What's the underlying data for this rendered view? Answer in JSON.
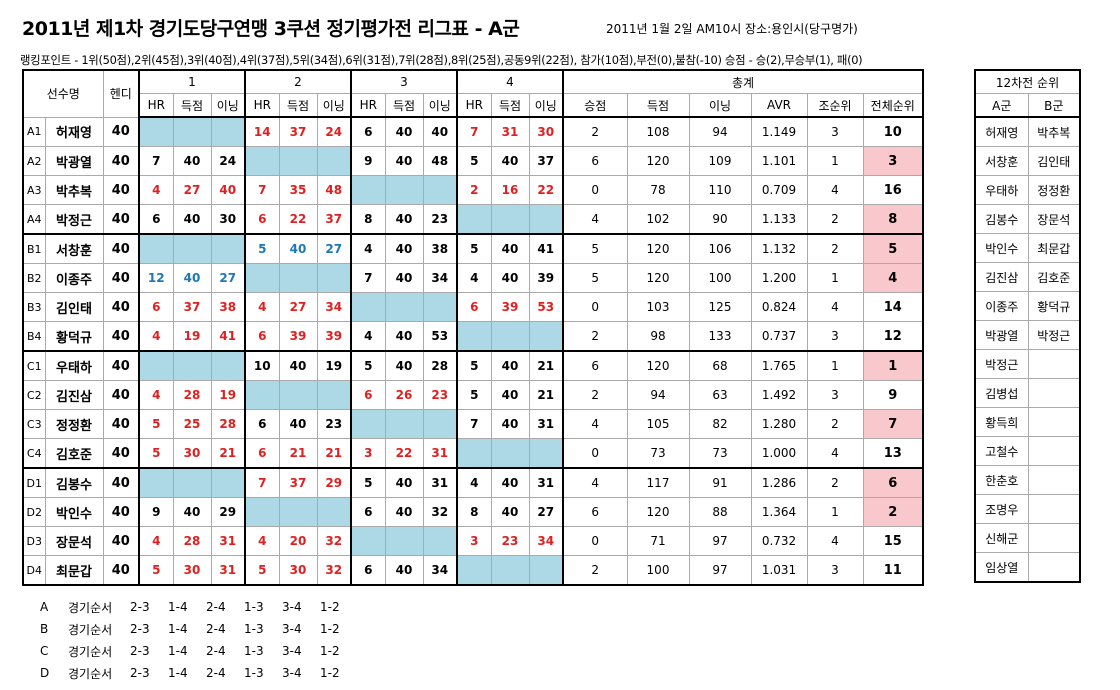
{
  "header": {
    "title": "2011년 제1차 경기도당구연맹 3쿠션 정기평가전 리그표 - A군",
    "info": "2011년 1월 2일 AM10시 장소:용인시(당구명가)",
    "points": "랭킹포인트 - 1위(50점),2위(45점),3위(40점),4위(37점),5위(34점),6위(31점),7위(28점),8위(25점),공동9위(22점), 참가(10점),부전(0),불참(-10) 승점 - 승(2),무승부(1), 패(0)"
  },
  "table": {
    "headers": {
      "player": "선수명",
      "handicap": "헨디",
      "games": [
        "1",
        "2",
        "3",
        "4"
      ],
      "total": "총계",
      "sub": [
        "HR",
        "득점",
        "이닝"
      ],
      "total_sub": [
        "승점",
        "득점",
        "이닝",
        "AVR",
        "조순위",
        "전체순위"
      ]
    },
    "rows": [
      {
        "id": "A1",
        "name": "허재영",
        "hd": "40",
        "g": [
          null,
          [
            "14",
            "37",
            "24"
          ],
          [
            "6",
            "40",
            "40"
          ],
          [
            "7",
            "31",
            "30"
          ]
        ],
        "c": [
          null,
          "red",
          "black",
          "red"
        ],
        "t": [
          "2",
          "108",
          "94",
          "1.149",
          "3",
          "10"
        ],
        "pink": false
      },
      {
        "id": "A2",
        "name": "박광열",
        "hd": "40",
        "g": [
          [
            "7",
            "40",
            "24"
          ],
          null,
          [
            "9",
            "40",
            "48"
          ],
          [
            "5",
            "40",
            "37"
          ]
        ],
        "c": [
          "black",
          null,
          "black",
          "black"
        ],
        "t": [
          "6",
          "120",
          "109",
          "1.101",
          "1",
          "3"
        ],
        "pink": true
      },
      {
        "id": "A3",
        "name": "박추복",
        "hd": "40",
        "g": [
          [
            "4",
            "27",
            "40"
          ],
          [
            "7",
            "35",
            "48"
          ],
          null,
          [
            "2",
            "16",
            "22"
          ]
        ],
        "c": [
          "red",
          "red",
          null,
          "red"
        ],
        "t": [
          "0",
          "78",
          "110",
          "0.709",
          "4",
          "16"
        ],
        "pink": false
      },
      {
        "id": "A4",
        "name": "박정근",
        "hd": "40",
        "g": [
          [
            "6",
            "40",
            "30"
          ],
          [
            "6",
            "22",
            "37"
          ],
          [
            "8",
            "40",
            "23"
          ],
          null
        ],
        "c": [
          "black",
          "red",
          "black",
          null
        ],
        "t": [
          "4",
          "102",
          "90",
          "1.133",
          "2",
          "8"
        ],
        "pink": true
      },
      {
        "id": "B1",
        "name": "서창훈",
        "hd": "40",
        "g": [
          null,
          [
            "5",
            "40",
            "27"
          ],
          [
            "4",
            "40",
            "38"
          ],
          [
            "5",
            "40",
            "41"
          ]
        ],
        "c": [
          null,
          "blue",
          "black",
          "black"
        ],
        "t": [
          "5",
          "120",
          "106",
          "1.132",
          "2",
          "5"
        ],
        "pink": true
      },
      {
        "id": "B2",
        "name": "이종주",
        "hd": "40",
        "g": [
          [
            "12",
            "40",
            "27"
          ],
          null,
          [
            "7",
            "40",
            "34"
          ],
          [
            "4",
            "40",
            "39"
          ]
        ],
        "c": [
          "blue",
          null,
          "black",
          "black"
        ],
        "t": [
          "5",
          "120",
          "100",
          "1.200",
          "1",
          "4"
        ],
        "pink": true
      },
      {
        "id": "B3",
        "name": "김인태",
        "hd": "40",
        "g": [
          [
            "6",
            "37",
            "38"
          ],
          [
            "4",
            "27",
            "34"
          ],
          null,
          [
            "6",
            "39",
            "53"
          ]
        ],
        "c": [
          "red",
          "red",
          null,
          "red"
        ],
        "t": [
          "0",
          "103",
          "125",
          "0.824",
          "4",
          "14"
        ],
        "pink": false
      },
      {
        "id": "B4",
        "name": "황덕규",
        "hd": "40",
        "g": [
          [
            "4",
            "19",
            "41"
          ],
          [
            "6",
            "39",
            "39"
          ],
          [
            "4",
            "40",
            "53"
          ],
          null
        ],
        "c": [
          "red",
          "red",
          "black",
          null
        ],
        "t": [
          "2",
          "98",
          "133",
          "0.737",
          "3",
          "12"
        ],
        "pink": false
      },
      {
        "id": "C1",
        "name": "우태하",
        "hd": "40",
        "g": [
          null,
          [
            "10",
            "40",
            "19"
          ],
          [
            "5",
            "40",
            "28"
          ],
          [
            "5",
            "40",
            "21"
          ]
        ],
        "c": [
          null,
          "black",
          "black",
          "black"
        ],
        "t": [
          "6",
          "120",
          "68",
          "1.765",
          "1",
          "1"
        ],
        "pink": true
      },
      {
        "id": "C2",
        "name": "김진삼",
        "hd": "40",
        "g": [
          [
            "4",
            "28",
            "19"
          ],
          null,
          [
            "6",
            "26",
            "23"
          ],
          [
            "5",
            "40",
            "21"
          ]
        ],
        "c": [
          "red",
          null,
          "red",
          "black"
        ],
        "t": [
          "2",
          "94",
          "63",
          "1.492",
          "3",
          "9"
        ],
        "pink": false
      },
      {
        "id": "C3",
        "name": "정정환",
        "hd": "40",
        "g": [
          [
            "5",
            "25",
            "28"
          ],
          [
            "6",
            "40",
            "23"
          ],
          null,
          [
            "7",
            "40",
            "31"
          ]
        ],
        "c": [
          "red",
          "black",
          null,
          "black"
        ],
        "t": [
          "4",
          "105",
          "82",
          "1.280",
          "2",
          "7"
        ],
        "pink": true
      },
      {
        "id": "C4",
        "name": "김호준",
        "hd": "40",
        "g": [
          [
            "5",
            "30",
            "21"
          ],
          [
            "6",
            "21",
            "21"
          ],
          [
            "3",
            "22",
            "31"
          ],
          null
        ],
        "c": [
          "red",
          "red",
          "red",
          null
        ],
        "t": [
          "0",
          "73",
          "73",
          "1.000",
          "4",
          "13"
        ],
        "pink": false
      },
      {
        "id": "D1",
        "name": "김봉수",
        "hd": "40",
        "g": [
          null,
          [
            "7",
            "37",
            "29"
          ],
          [
            "5",
            "40",
            "31"
          ],
          [
            "4",
            "40",
            "31"
          ]
        ],
        "c": [
          null,
          "red",
          "black",
          "black"
        ],
        "t": [
          "4",
          "117",
          "91",
          "1.286",
          "2",
          "6"
        ],
        "pink": true
      },
      {
        "id": "D2",
        "name": "박인수",
        "hd": "40",
        "g": [
          [
            "9",
            "40",
            "29"
          ],
          null,
          [
            "6",
            "40",
            "32"
          ],
          [
            "8",
            "40",
            "27"
          ]
        ],
        "c": [
          "black",
          null,
          "black",
          "black"
        ],
        "t": [
          "6",
          "120",
          "88",
          "1.364",
          "1",
          "2"
        ],
        "pink": true
      },
      {
        "id": "D3",
        "name": "장문석",
        "hd": "40",
        "g": [
          [
            "4",
            "28",
            "31"
          ],
          [
            "4",
            "20",
            "32"
          ],
          null,
          [
            "3",
            "23",
            "34"
          ]
        ],
        "c": [
          "red",
          "red",
          null,
          "red"
        ],
        "t": [
          "0",
          "71",
          "97",
          "0.732",
          "4",
          "15"
        ],
        "pink": false
      },
      {
        "id": "D4",
        "name": "최문갑",
        "hd": "40",
        "g": [
          [
            "5",
            "30",
            "31"
          ],
          [
            "5",
            "30",
            "32"
          ],
          [
            "6",
            "40",
            "34"
          ],
          null
        ],
        "c": [
          "red",
          "red",
          "black",
          null
        ],
        "t": [
          "2",
          "100",
          "97",
          "1.031",
          "3",
          "11"
        ],
        "pink": false
      }
    ]
  },
  "side": {
    "title": "12차전 순위",
    "cols": [
      "A군",
      "B군"
    ],
    "rows": [
      [
        "허재영",
        "박추복"
      ],
      [
        "서창훈",
        "김인태"
      ],
      [
        "우태하",
        "정정환"
      ],
      [
        "김봉수",
        "장문석"
      ],
      [
        "박인수",
        "최문갑"
      ],
      [
        "김진삼",
        "김호준"
      ],
      [
        "이종주",
        "황덕규"
      ],
      [
        "박광열",
        "박정근"
      ],
      [
        "박정근",
        ""
      ],
      [
        "김병섭",
        ""
      ],
      [
        "황득희",
        ""
      ],
      [
        "고철수",
        ""
      ],
      [
        "한춘호",
        ""
      ],
      [
        "조명우",
        ""
      ],
      [
        "신해군",
        ""
      ],
      [
        "임상열",
        ""
      ]
    ]
  },
  "order": {
    "label": "경기순서",
    "rows": [
      {
        "group": "A",
        "seq": [
          "2-3",
          "1-4",
          "2-4",
          "1-3",
          "3-4",
          "1-2"
        ]
      },
      {
        "group": "B",
        "seq": [
          "2-3",
          "1-4",
          "2-4",
          "1-3",
          "3-4",
          "1-2"
        ]
      },
      {
        "group": "C",
        "seq": [
          "2-3",
          "1-4",
          "2-4",
          "1-3",
          "3-4",
          "1-2"
        ]
      },
      {
        "group": "D",
        "seq": [
          "2-3",
          "1-4",
          "2-4",
          "1-3",
          "3-4",
          "1-2"
        ]
      }
    ]
  },
  "colors": {
    "shade": "#add8e6",
    "pink": "#f8c8cc",
    "red": "#e02020",
    "blue": "#1f77b4"
  }
}
